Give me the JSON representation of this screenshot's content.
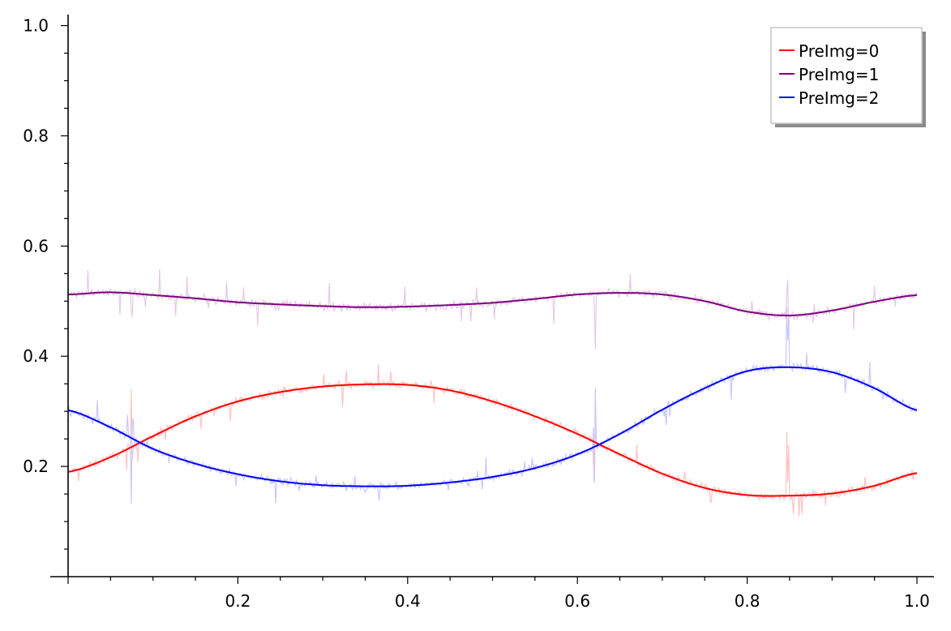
{
  "chart_data": {
    "type": "line",
    "title": "",
    "xlabel": "",
    "ylabel": "",
    "xlim": [
      0,
      1
    ],
    "ylim": [
      0,
      1.02
    ],
    "x_ticks": [
      0.2,
      0.4,
      0.6,
      0.8,
      1.0
    ],
    "x_tick_labels": [
      "0.2",
      "0.4",
      "0.6",
      "0.8",
      "1.0"
    ],
    "y_ticks": [
      0.2,
      0.4,
      0.6,
      0.8,
      1.0
    ],
    "y_tick_labels": [
      "0.2",
      "0.4",
      "0.6",
      "0.8",
      "1.0"
    ],
    "grid": false,
    "legend_position": "top-right",
    "x": [
      0,
      0.05,
      0.1,
      0.15,
      0.2,
      0.25,
      0.3,
      0.35,
      0.4,
      0.45,
      0.5,
      0.55,
      0.6,
      0.65,
      0.7,
      0.75,
      0.8,
      0.85,
      0.9,
      0.95,
      1.0
    ],
    "series": [
      {
        "name": "PreImg=0",
        "color": "#ff0000",
        "noise_color": "#ffc4c4",
        "values": [
          0.19,
          0.217,
          0.255,
          0.291,
          0.318,
          0.335,
          0.345,
          0.349,
          0.348,
          0.338,
          0.318,
          0.291,
          0.259,
          0.222,
          0.187,
          0.161,
          0.148,
          0.147,
          0.151,
          0.165,
          0.188
        ]
      },
      {
        "name": "PreImg=1",
        "color": "#800080",
        "noise_color": "#e4cbe4",
        "values": [
          0.512,
          0.516,
          0.511,
          0.505,
          0.498,
          0.494,
          0.491,
          0.489,
          0.49,
          0.493,
          0.497,
          0.504,
          0.512,
          0.515,
          0.512,
          0.5,
          0.481,
          0.474,
          0.483,
          0.499,
          0.511
        ]
      },
      {
        "name": "PreImg=2",
        "color": "#0000ff",
        "noise_color": "#c8c8ff",
        "values": [
          0.302,
          0.271,
          0.232,
          0.205,
          0.186,
          0.173,
          0.166,
          0.164,
          0.165,
          0.171,
          0.181,
          0.197,
          0.222,
          0.259,
          0.303,
          0.342,
          0.373,
          0.38,
          0.371,
          0.342,
          0.302
        ]
      }
    ]
  }
}
